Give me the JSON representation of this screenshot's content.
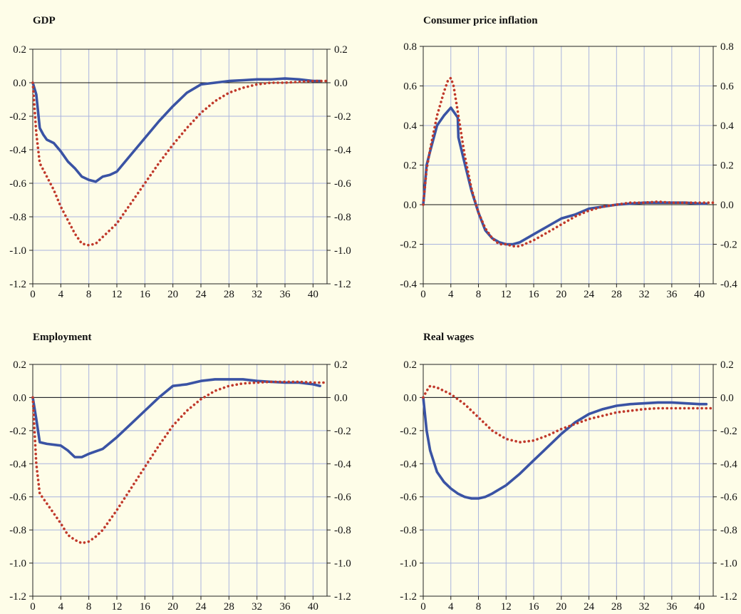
{
  "chart_data": [
    {
      "type": "line",
      "title": "GDP",
      "xlim": [
        0,
        42
      ],
      "ylim": [
        -1.2,
        0.2
      ],
      "xticks": [
        0,
        4,
        8,
        12,
        16,
        20,
        24,
        28,
        32,
        36,
        40
      ],
      "yticks": [
        -1.2,
        -1.0,
        -0.8,
        -0.6,
        -0.4,
        -0.2,
        0.0,
        0.2
      ],
      "ytick_labels": [
        "-1.2",
        "-1.0",
        "-0.8",
        "-0.6",
        "-0.4",
        "-0.2",
        "0.0",
        "0.2"
      ],
      "dual_y_axis": true,
      "grid": true,
      "zero_line": true,
      "series": [
        {
          "style": "solid",
          "color": "#3a53a4",
          "x": [
            0,
            0.5,
            1,
            1.5,
            2,
            3,
            4,
            5,
            6,
            7,
            8,
            9,
            10,
            11,
            12,
            14,
            16,
            18,
            20,
            22,
            24,
            26,
            28,
            30,
            32,
            34,
            36,
            38,
            40,
            41
          ],
          "y": [
            0,
            -0.07,
            -0.27,
            -0.31,
            -0.34,
            -0.36,
            -0.41,
            -0.47,
            -0.51,
            -0.56,
            -0.58,
            -0.59,
            -0.56,
            -0.55,
            -0.53,
            -0.43,
            -0.33,
            -0.23,
            -0.14,
            -0.06,
            -0.01,
            0.0,
            0.01,
            0.015,
            0.02,
            0.02,
            0.025,
            0.02,
            0.01,
            0.01
          ]
        },
        {
          "style": "dotted",
          "color": "#c0392b",
          "x": [
            0,
            0.5,
            1,
            2,
            3,
            4,
            5,
            6,
            7,
            8,
            9,
            10,
            11,
            12,
            13,
            14,
            16,
            18,
            20,
            22,
            24,
            26,
            28,
            30,
            32,
            34,
            36,
            38,
            40,
            42
          ],
          "y": [
            0,
            -0.3,
            -0.48,
            -0.56,
            -0.64,
            -0.74,
            -0.82,
            -0.9,
            -0.96,
            -0.97,
            -0.96,
            -0.92,
            -0.88,
            -0.84,
            -0.78,
            -0.72,
            -0.6,
            -0.48,
            -0.37,
            -0.27,
            -0.18,
            -0.11,
            -0.06,
            -0.03,
            -0.01,
            0.0,
            0.0,
            0.005,
            0.01,
            0.01
          ]
        }
      ]
    },
    {
      "type": "line",
      "title": "Consumer price inflation",
      "xlim": [
        0,
        42
      ],
      "ylim": [
        -0.4,
        0.8
      ],
      "xticks": [
        0,
        4,
        8,
        12,
        16,
        20,
        24,
        28,
        32,
        36,
        40
      ],
      "yticks": [
        -0.4,
        -0.2,
        0.0,
        0.2,
        0.4,
        0.6,
        0.8
      ],
      "ytick_labels": [
        "-0.4",
        "-0.2",
        "0.0",
        "0.2",
        "0.4",
        "0.6",
        "0.8"
      ],
      "dual_y_axis": true,
      "grid": true,
      "zero_line": true,
      "series": [
        {
          "style": "solid",
          "color": "#3a53a4",
          "x": [
            0,
            0.5,
            1,
            2,
            3,
            4,
            5,
            5.1,
            6,
            7,
            8,
            9,
            10,
            11,
            12,
            13,
            14,
            16,
            18,
            20,
            22,
            24,
            26,
            28,
            30,
            32,
            34,
            36,
            38,
            40,
            41
          ],
          "y": [
            0,
            0.2,
            0.27,
            0.4,
            0.45,
            0.49,
            0.44,
            0.34,
            0.21,
            0.07,
            -0.04,
            -0.13,
            -0.17,
            -0.19,
            -0.2,
            -0.2,
            -0.19,
            -0.15,
            -0.11,
            -0.07,
            -0.05,
            -0.02,
            -0.01,
            0.0,
            0.005,
            0.01,
            0.01,
            0.01,
            0.01,
            0.005,
            0.005
          ]
        },
        {
          "style": "dotted",
          "color": "#c0392b",
          "x": [
            0,
            0.5,
            1,
            2,
            3,
            3.6,
            4,
            4.4,
            5,
            6,
            7,
            8,
            9,
            10,
            11,
            12,
            13,
            14,
            16,
            18,
            20,
            22,
            24,
            26,
            28,
            30,
            32,
            34,
            36,
            38,
            40,
            42
          ],
          "y": [
            0,
            0.18,
            0.28,
            0.45,
            0.57,
            0.63,
            0.64,
            0.6,
            0.47,
            0.25,
            0.08,
            -0.04,
            -0.12,
            -0.17,
            -0.2,
            -0.2,
            -0.21,
            -0.21,
            -0.18,
            -0.14,
            -0.1,
            -0.06,
            -0.03,
            -0.01,
            0.0,
            0.01,
            0.01,
            0.015,
            0.01,
            0.01,
            0.01,
            0.01
          ]
        }
      ]
    },
    {
      "type": "line",
      "title": "Employment",
      "xlim": [
        0,
        42
      ],
      "ylim": [
        -1.2,
        0.2
      ],
      "xticks": [
        0,
        4,
        8,
        12,
        16,
        20,
        24,
        28,
        32,
        36,
        40
      ],
      "yticks": [
        -1.2,
        -1.0,
        -0.8,
        -0.6,
        -0.4,
        -0.2,
        0.0,
        0.2
      ],
      "ytick_labels": [
        "-1.2",
        "-1.0",
        "-0.8",
        "-0.6",
        "-0.4",
        "-0.2",
        "0.0",
        "0.2"
      ],
      "dual_y_axis": true,
      "grid": true,
      "zero_line": true,
      "series": [
        {
          "style": "solid",
          "color": "#3a53a4",
          "x": [
            0,
            0.5,
            1,
            2,
            4,
            5,
            6,
            7,
            8,
            10,
            12,
            14,
            16,
            18,
            20,
            22,
            24,
            26,
            28,
            30,
            32,
            34,
            36,
            38,
            40,
            41
          ],
          "y": [
            0,
            -0.13,
            -0.27,
            -0.28,
            -0.29,
            -0.32,
            -0.36,
            -0.36,
            -0.34,
            -0.31,
            -0.24,
            -0.16,
            -0.08,
            0.0,
            0.07,
            0.08,
            0.1,
            0.11,
            0.11,
            0.11,
            0.1,
            0.095,
            0.09,
            0.09,
            0.08,
            0.07
          ]
        },
        {
          "style": "dotted",
          "color": "#c0392b",
          "x": [
            0,
            0.5,
            1,
            2,
            3,
            4,
            5,
            6,
            7,
            8,
            9,
            10,
            12,
            14,
            16,
            18,
            20,
            22,
            24,
            26,
            28,
            30,
            32,
            34,
            36,
            38,
            40,
            42
          ],
          "y": [
            0,
            -0.4,
            -0.58,
            -0.64,
            -0.7,
            -0.76,
            -0.83,
            -0.86,
            -0.88,
            -0.87,
            -0.84,
            -0.8,
            -0.68,
            -0.55,
            -0.42,
            -0.29,
            -0.17,
            -0.08,
            -0.01,
            0.04,
            0.07,
            0.085,
            0.09,
            0.095,
            0.095,
            0.095,
            0.09,
            0.09
          ]
        }
      ]
    },
    {
      "type": "line",
      "title": "Real wages",
      "xlim": [
        0,
        42
      ],
      "ylim": [
        -1.2,
        0.2
      ],
      "xticks": [
        0,
        4,
        8,
        12,
        16,
        20,
        24,
        28,
        32,
        36,
        40
      ],
      "yticks": [
        -1.2,
        -1.0,
        -0.8,
        -0.6,
        -0.4,
        -0.2,
        0.0,
        0.2
      ],
      "ytick_labels": [
        "-1.2",
        "-1.0",
        "-0.8",
        "-0.6",
        "-0.4",
        "-0.2",
        "0.0",
        "0.2"
      ],
      "dual_y_axis": true,
      "grid": true,
      "zero_line": true,
      "series": [
        {
          "style": "solid",
          "color": "#3a53a4",
          "x": [
            0,
            0.5,
            1,
            2,
            3,
            4,
            5,
            6,
            7,
            8,
            9,
            10,
            12,
            14,
            16,
            18,
            20,
            22,
            24,
            26,
            28,
            30,
            32,
            34,
            36,
            38,
            40,
            41
          ],
          "y": [
            0,
            -0.2,
            -0.32,
            -0.45,
            -0.51,
            -0.55,
            -0.58,
            -0.6,
            -0.61,
            -0.61,
            -0.6,
            -0.58,
            -0.53,
            -0.46,
            -0.38,
            -0.3,
            -0.22,
            -0.15,
            -0.1,
            -0.07,
            -0.05,
            -0.04,
            -0.035,
            -0.03,
            -0.03,
            -0.035,
            -0.04,
            -0.04
          ]
        },
        {
          "style": "dotted",
          "color": "#c0392b",
          "x": [
            0,
            0.5,
            1,
            2,
            3,
            4,
            5,
            6,
            7,
            8,
            10,
            12,
            14,
            16,
            18,
            20,
            22,
            24,
            26,
            28,
            30,
            32,
            34,
            36,
            38,
            40,
            42
          ],
          "y": [
            0,
            0.04,
            0.07,
            0.06,
            0.04,
            0.02,
            -0.01,
            -0.04,
            -0.08,
            -0.12,
            -0.2,
            -0.25,
            -0.27,
            -0.26,
            -0.23,
            -0.19,
            -0.16,
            -0.13,
            -0.11,
            -0.09,
            -0.08,
            -0.07,
            -0.065,
            -0.065,
            -0.065,
            -0.065,
            -0.065
          ]
        }
      ]
    }
  ]
}
